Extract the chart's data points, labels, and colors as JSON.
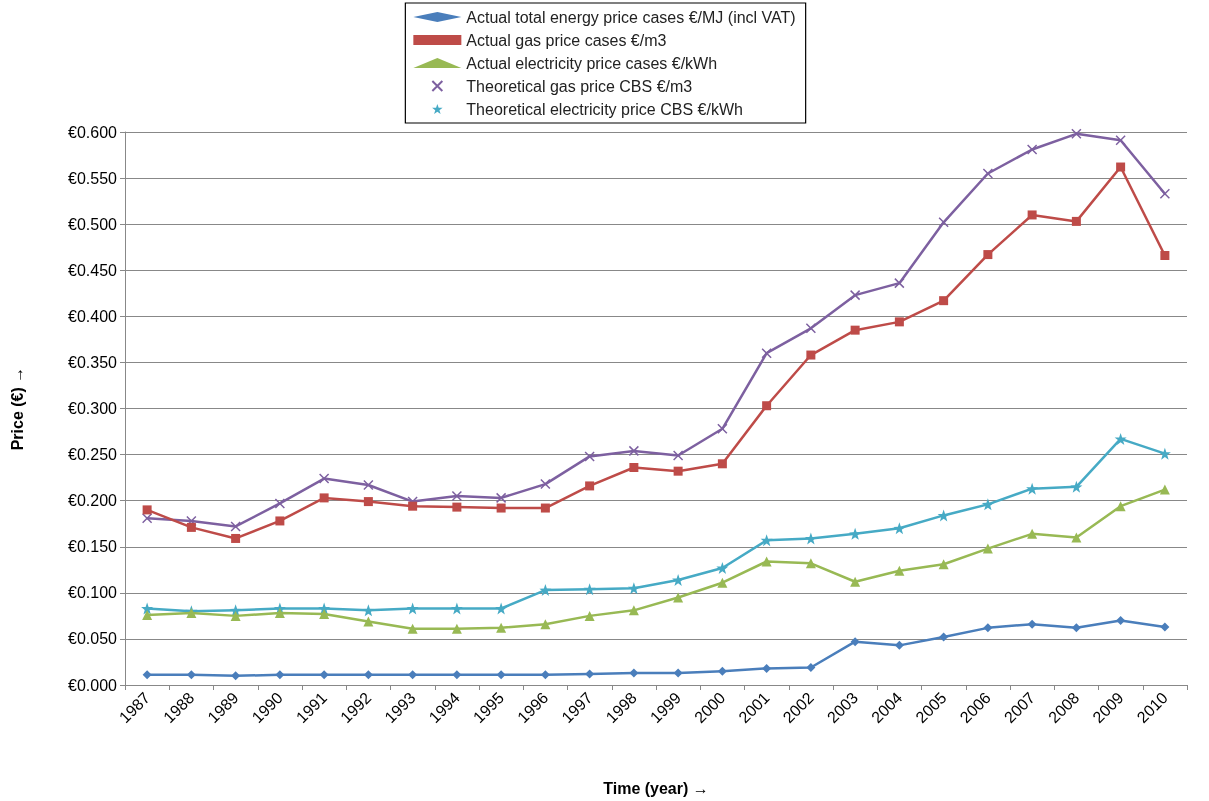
{
  "chart_data": {
    "type": "line",
    "xlabel": "Time (year) →",
    "ylabel": "Price (€) →",
    "categories": [
      "1987",
      "1988",
      "1989",
      "1990",
      "1991",
      "1992",
      "1993",
      "1994",
      "1995",
      "1996",
      "1997",
      "1998",
      "1999",
      "2000",
      "2001",
      "2002",
      "2003",
      "2004",
      "2005",
      "2006",
      "2007",
      "2008",
      "2009",
      "2010"
    ],
    "series": [
      {
        "name": "Actual total energy price cases €/MJ (incl VAT)",
        "color": "#4a7ebb",
        "marker": "diamond",
        "values": [
          0.011,
          0.011,
          0.01,
          0.011,
          0.011,
          0.011,
          0.011,
          0.011,
          0.011,
          0.011,
          0.012,
          0.013,
          0.013,
          0.015,
          0.018,
          0.019,
          0.047,
          0.043,
          0.052,
          0.062,
          0.066,
          0.062,
          0.07,
          0.063
        ]
      },
      {
        "name": "Actual gas price cases €/m3",
        "color": "#be4b48",
        "marker": "square",
        "values": [
          0.19,
          0.171,
          0.159,
          0.178,
          0.203,
          0.199,
          0.194,
          0.193,
          0.192,
          0.192,
          0.216,
          0.236,
          0.232,
          0.24,
          0.303,
          0.358,
          0.385,
          0.394,
          0.417,
          0.467,
          0.51,
          0.503,
          0.562,
          0.466
        ]
      },
      {
        "name": "Actual electricity price cases €/kWh",
        "color": "#98b954",
        "marker": "triangle",
        "values": [
          0.076,
          0.078,
          0.075,
          0.078,
          0.077,
          0.069,
          0.061,
          0.061,
          0.062,
          0.066,
          0.075,
          0.081,
          0.095,
          0.111,
          0.134,
          0.132,
          0.112,
          0.124,
          0.131,
          0.148,
          0.164,
          0.16,
          0.194,
          0.212
        ]
      },
      {
        "name": "Theoretical gas price CBS €/m3",
        "color": "#7d60a0",
        "marker": "cross",
        "values": [
          0.181,
          0.178,
          0.172,
          0.197,
          0.224,
          0.217,
          0.199,
          0.205,
          0.203,
          0.218,
          0.248,
          0.254,
          0.249,
          0.278,
          0.36,
          0.387,
          0.423,
          0.436,
          0.502,
          0.555,
          0.581,
          0.598,
          0.591,
          0.533
        ]
      },
      {
        "name": "Theoretical electricity price CBS €/kWh",
        "color": "#46aac5",
        "marker": "star",
        "values": [
          0.083,
          0.08,
          0.081,
          0.083,
          0.083,
          0.081,
          0.083,
          0.083,
          0.083,
          0.103,
          0.104,
          0.105,
          0.114,
          0.127,
          0.157,
          0.159,
          0.164,
          0.17,
          0.184,
          0.196,
          0.213,
          0.215,
          0.267,
          0.251
        ]
      }
    ],
    "ylim": [
      0,
      0.6
    ],
    "yticks": [
      {
        "value": 0,
        "label": "€0.000"
      },
      {
        "value": 0.05,
        "label": "€0.050"
      },
      {
        "value": 0.1,
        "label": "€0.100"
      },
      {
        "value": 0.15,
        "label": "€0.150"
      },
      {
        "value": 0.2,
        "label": "€0.200"
      },
      {
        "value": 0.25,
        "label": "€0.250"
      },
      {
        "value": 0.3,
        "label": "€0.300"
      },
      {
        "value": 0.35,
        "label": "€0.350"
      },
      {
        "value": 0.4,
        "label": "€0.400"
      },
      {
        "value": 0.45,
        "label": "€0.450"
      },
      {
        "value": 0.5,
        "label": "€0.500"
      },
      {
        "value": 0.55,
        "label": "€0.550"
      },
      {
        "value": 0.6,
        "label": "€0.600"
      }
    ],
    "grid": "y",
    "legend": "top",
    "line_style": "solid"
  }
}
